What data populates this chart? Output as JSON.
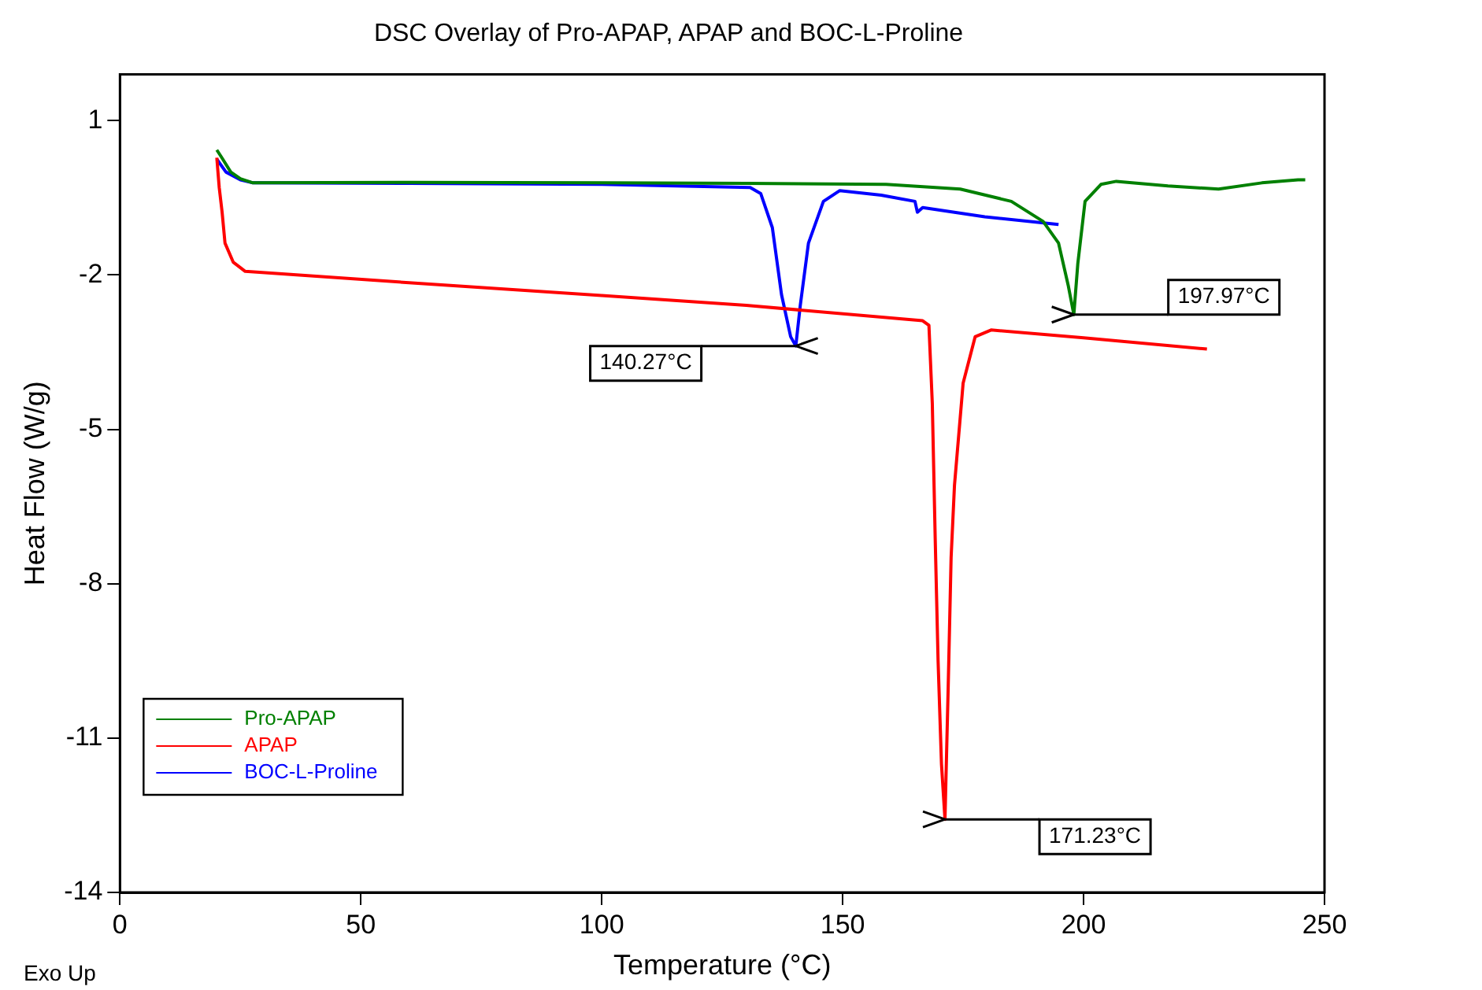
{
  "chart_data": {
    "type": "line",
    "title": "DSC Overlay of Pro-APAP, APAP and BOC-L-Proline",
    "xlabel": "Temperature (°C)",
    "ylabel": "Heat Flow (W/g)",
    "xlim": [
      0,
      250
    ],
    "xticks": [
      0,
      50,
      100,
      150,
      200,
      250
    ],
    "ylim": [
      -14,
      1.9
    ],
    "yticks": [
      1,
      -2,
      -5,
      -8,
      -11,
      -14
    ],
    "grid": false,
    "legend": "bottom left",
    "marker": "none",
    "line_style": "solid",
    "series": [
      {
        "name": "Pro-APAP",
        "color": "#008000",
        "x": [
          20.1,
          21,
          23,
          25,
          27.6,
          60,
          100,
          130,
          159,
          174.4,
          185,
          191.6,
          194.8,
          196.8,
          197.97,
          198.8,
          200.3,
          203.6,
          206.8,
          217.5,
          228,
          237,
          244.5,
          246
        ],
        "values": [
          0.43,
          0.3,
          0.0,
          -0.13,
          -0.21,
          -0.2,
          -0.21,
          -0.22,
          -0.24,
          -0.33,
          -0.57,
          -0.96,
          -1.38,
          -2.2,
          -2.77,
          -1.78,
          -0.57,
          -0.24,
          -0.18,
          -0.27,
          -0.33,
          -0.21,
          -0.15,
          -0.15
        ]
      },
      {
        "name": "APAP",
        "color": "#ff0000",
        "x": [
          20.1,
          20.6,
          21.2,
          21.8,
          23.5,
          26,
          60,
          100,
          130,
          166.6,
          167.9,
          168.6,
          169.2,
          169.8,
          170.5,
          171.23,
          171.9,
          172.5,
          173.2,
          175,
          177.5,
          180.8,
          200,
          225.6
        ],
        "values": [
          0.28,
          -0.3,
          -0.78,
          -1.38,
          -1.75,
          -1.93,
          -2.15,
          -2.4,
          -2.59,
          -2.89,
          -2.98,
          -4.5,
          -7.12,
          -9.5,
          -11.5,
          -12.58,
          -10,
          -7.5,
          -6.09,
          -4.1,
          -3.2,
          -3.07,
          -3.22,
          -3.44
        ]
      },
      {
        "name": "BOC-L-Proline",
        "color": "#0000ff",
        "x": [
          20.1,
          22,
          25,
          27.6,
          60,
          100,
          130.8,
          133,
          135.4,
          137.3,
          139.2,
          140.27,
          141.2,
          142.9,
          146,
          149.4,
          158,
          165,
          165.5,
          166.6,
          179.5,
          194.8
        ],
        "values": [
          0.25,
          0.0,
          -0.15,
          -0.21,
          -0.22,
          -0.24,
          -0.3,
          -0.42,
          -1.08,
          -2.38,
          -3.2,
          -3.38,
          -2.59,
          -1.38,
          -0.57,
          -0.36,
          -0.45,
          -0.57,
          -0.78,
          -0.69,
          -0.87,
          -1.02
        ]
      }
    ],
    "annotations": [
      {
        "text": "140.27°C",
        "x": 140.27,
        "y": -3.38
      },
      {
        "text": "197.97°C",
        "x": 197.97,
        "y": -2.77
      },
      {
        "text": "171.23°C",
        "x": 171.23,
        "y": -12.58
      },
      "Exo Up"
    ]
  }
}
